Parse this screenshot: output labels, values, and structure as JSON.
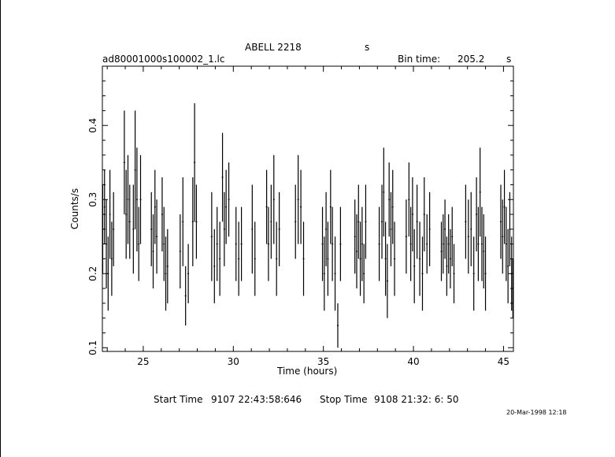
{
  "header": {
    "title": "ABELL 2218",
    "title_unit": "s",
    "filename": "ad80001000s100002_1.lc",
    "bin_label": "Bin time:",
    "bin_value": "205.2",
    "bin_unit": "s"
  },
  "footer": {
    "start_label": "Start Time",
    "start_value": "9107 22:43:58:646",
    "stop_label": "Stop Time",
    "stop_value": "9108 21:32: 6: 50",
    "stamp": "20-Mar-1998 12:18"
  },
  "chart_data": {
    "type": "scatter",
    "title": "ABELL 2218",
    "xlabel": "Time (hours)",
    "ylabel": "Counts/s",
    "xlim": [
      22.73,
      45.55
    ],
    "ylim": [
      0.095,
      0.48
    ],
    "x_ticks": [
      25,
      30,
      35,
      40,
      45
    ],
    "y_ticks": [
      0.1,
      0.2,
      0.3,
      0.4
    ],
    "x_tick_labels": [
      "25",
      "30",
      "35",
      "40",
      "45"
    ],
    "y_tick_labels": [
      "0.1",
      "0.2",
      "0.3",
      "0.4"
    ],
    "grid": false,
    "series": [
      {
        "points": [
          [
            22.75,
            0.26,
            0.06
          ],
          [
            22.85,
            0.29,
            0.05
          ],
          [
            22.95,
            0.24,
            0.06
          ],
          [
            23.05,
            0.2,
            0.05
          ],
          [
            23.15,
            0.28,
            0.06
          ],
          [
            23.25,
            0.22,
            0.05
          ],
          [
            23.35,
            0.26,
            0.05
          ],
          [
            23.95,
            0.35,
            0.07
          ],
          [
            24.05,
            0.28,
            0.06
          ],
          [
            24.15,
            0.3,
            0.06
          ],
          [
            24.25,
            0.27,
            0.05
          ],
          [
            24.45,
            0.26,
            0.06
          ],
          [
            24.55,
            0.34,
            0.08
          ],
          [
            24.65,
            0.3,
            0.07
          ],
          [
            24.75,
            0.24,
            0.05
          ],
          [
            24.85,
            0.3,
            0.06
          ],
          [
            25.45,
            0.26,
            0.05
          ],
          [
            25.55,
            0.23,
            0.05
          ],
          [
            25.65,
            0.29,
            0.05
          ],
          [
            25.75,
            0.25,
            0.05
          ],
          [
            26.05,
            0.28,
            0.05
          ],
          [
            26.15,
            0.24,
            0.05
          ],
          [
            26.25,
            0.2,
            0.05
          ],
          [
            26.35,
            0.21,
            0.05
          ],
          [
            27.05,
            0.23,
            0.05
          ],
          [
            27.2,
            0.27,
            0.06
          ],
          [
            27.35,
            0.17,
            0.04
          ],
          [
            27.5,
            0.2,
            0.04
          ],
          [
            27.75,
            0.27,
            0.06
          ],
          [
            27.85,
            0.35,
            0.08
          ],
          [
            27.95,
            0.27,
            0.05
          ],
          [
            28.8,
            0.25,
            0.06
          ],
          [
            28.95,
            0.21,
            0.05
          ],
          [
            29.1,
            0.24,
            0.05
          ],
          [
            29.25,
            0.22,
            0.05
          ],
          [
            29.4,
            0.33,
            0.06
          ],
          [
            29.5,
            0.26,
            0.05
          ],
          [
            29.6,
            0.29,
            0.05
          ],
          [
            29.75,
            0.3,
            0.05
          ],
          [
            30.15,
            0.24,
            0.05
          ],
          [
            30.3,
            0.22,
            0.05
          ],
          [
            30.45,
            0.24,
            0.05
          ],
          [
            31.05,
            0.26,
            0.06
          ],
          [
            31.2,
            0.22,
            0.05
          ],
          [
            31.85,
            0.29,
            0.05
          ],
          [
            31.95,
            0.24,
            0.05
          ],
          [
            32.1,
            0.27,
            0.05
          ],
          [
            32.25,
            0.3,
            0.06
          ],
          [
            32.4,
            0.22,
            0.05
          ],
          [
            32.55,
            0.26,
            0.05
          ],
          [
            33.45,
            0.27,
            0.05
          ],
          [
            33.6,
            0.3,
            0.06
          ],
          [
            33.75,
            0.29,
            0.05
          ],
          [
            33.9,
            0.22,
            0.05
          ],
          [
            34.95,
            0.24,
            0.05
          ],
          [
            35.05,
            0.2,
            0.05
          ],
          [
            35.15,
            0.26,
            0.05
          ],
          [
            35.25,
            0.22,
            0.05
          ],
          [
            35.4,
            0.29,
            0.05
          ],
          [
            35.5,
            0.24,
            0.05
          ],
          [
            35.65,
            0.2,
            0.05
          ],
          [
            35.8,
            0.13,
            0.03
          ],
          [
            35.95,
            0.24,
            0.05
          ],
          [
            36.75,
            0.25,
            0.05
          ],
          [
            36.85,
            0.23,
            0.05
          ],
          [
            36.95,
            0.27,
            0.05
          ],
          [
            37.05,
            0.22,
            0.05
          ],
          [
            37.15,
            0.24,
            0.05
          ],
          [
            37.25,
            0.2,
            0.04
          ],
          [
            37.35,
            0.27,
            0.05
          ],
          [
            38.1,
            0.24,
            0.05
          ],
          [
            38.25,
            0.27,
            0.05
          ],
          [
            38.35,
            0.31,
            0.06
          ],
          [
            38.45,
            0.22,
            0.05
          ],
          [
            38.55,
            0.19,
            0.05
          ],
          [
            38.65,
            0.3,
            0.05
          ],
          [
            38.75,
            0.26,
            0.05
          ],
          [
            38.85,
            0.29,
            0.05
          ],
          [
            38.95,
            0.22,
            0.05
          ],
          [
            39.6,
            0.25,
            0.05
          ],
          [
            39.75,
            0.3,
            0.05
          ],
          [
            39.85,
            0.24,
            0.05
          ],
          [
            39.95,
            0.28,
            0.05
          ],
          [
            40.05,
            0.21,
            0.05
          ],
          [
            40.2,
            0.27,
            0.05
          ],
          [
            40.35,
            0.22,
            0.05
          ],
          [
            40.5,
            0.2,
            0.05
          ],
          [
            40.6,
            0.28,
            0.05
          ],
          [
            40.75,
            0.24,
            0.04
          ],
          [
            40.9,
            0.26,
            0.05
          ],
          [
            41.55,
            0.23,
            0.04
          ],
          [
            41.65,
            0.24,
            0.04
          ],
          [
            41.75,
            0.26,
            0.04
          ],
          [
            41.85,
            0.21,
            0.04
          ],
          [
            41.95,
            0.24,
            0.04
          ],
          [
            42.05,
            0.22,
            0.04
          ],
          [
            42.15,
            0.25,
            0.04
          ],
          [
            42.25,
            0.2,
            0.04
          ],
          [
            42.9,
            0.27,
            0.05
          ],
          [
            43.05,
            0.25,
            0.05
          ],
          [
            43.2,
            0.26,
            0.05
          ],
          [
            43.35,
            0.2,
            0.05
          ],
          [
            43.5,
            0.28,
            0.05
          ],
          [
            43.6,
            0.24,
            0.05
          ],
          [
            43.7,
            0.31,
            0.06
          ],
          [
            43.8,
            0.24,
            0.05
          ],
          [
            43.9,
            0.23,
            0.05
          ],
          [
            44.0,
            0.2,
            0.05
          ],
          [
            44.85,
            0.27,
            0.05
          ],
          [
            44.95,
            0.25,
            0.05
          ],
          [
            45.05,
            0.29,
            0.05
          ],
          [
            45.15,
            0.24,
            0.05
          ],
          [
            45.25,
            0.21,
            0.05
          ],
          [
            45.35,
            0.26,
            0.05
          ],
          [
            45.45,
            0.2,
            0.05
          ],
          [
            45.52,
            0.18,
            0.04
          ]
        ]
      }
    ]
  }
}
